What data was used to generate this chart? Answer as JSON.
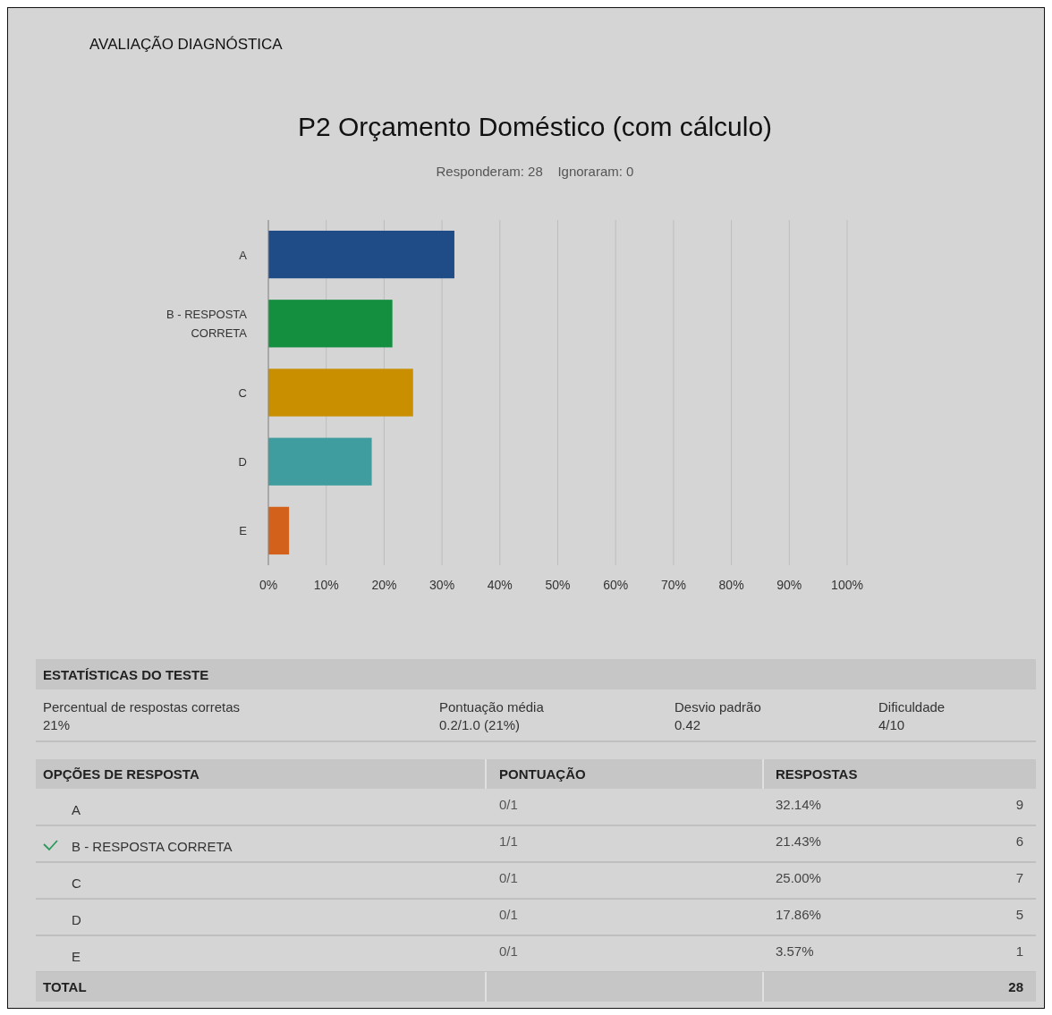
{
  "chart_data": {
    "type": "bar",
    "orientation": "horizontal",
    "title": "P2 Orçamento Doméstico (com cálculo)",
    "subtitle": "Responderam: 28    Ignoraram: 0",
    "categories": [
      "A",
      "B - RESPOSTA CORRETA",
      "C",
      "D",
      "E"
    ],
    "values": [
      32.14,
      21.43,
      25.0,
      17.86,
      3.57
    ],
    "colors": [
      "#1f4b87",
      "#138f3f",
      "#c98f00",
      "#3f9c9f",
      "#d3611c"
    ],
    "xlim": [
      0,
      100
    ],
    "xticks": [
      {
        "value": 0,
        "label": "0%"
      },
      {
        "value": 10,
        "label": "10%"
      },
      {
        "value": 20,
        "label": "20%"
      },
      {
        "value": 30,
        "label": "30%"
      },
      {
        "value": 40,
        "label": "40%"
      },
      {
        "value": 50,
        "label": "50%"
      },
      {
        "value": 60,
        "label": "60%"
      },
      {
        "value": 70,
        "label": "70%"
      },
      {
        "value": 80,
        "label": "80%"
      },
      {
        "value": 90,
        "label": "90%"
      },
      {
        "value": 100,
        "label": "100%"
      }
    ],
    "grid": "x",
    "annotations": [
      "AVALIAÇÃO DIAGNÓSTICA",
      "ESTATÍSTICAS DO TESTE",
      "Percentual de respostas corretas",
      "21%",
      "Pontuação média",
      "0.2/1.0 (21%)",
      "Desvio padrão",
      "0.42",
      "Dificuldade",
      "4/10",
      "OPÇÕES DE RESPOSTA",
      "PONTUAÇÃO",
      "RESPOSTAS",
      "0/1",
      "1/1",
      "0/1",
      "0/1",
      "0/1",
      "32.14%",
      "21.43%",
      "25.00%",
      "17.86%",
      "3.57%",
      "9",
      "6",
      "7",
      "5",
      "1",
      "TOTAL",
      "28"
    ]
  }
}
